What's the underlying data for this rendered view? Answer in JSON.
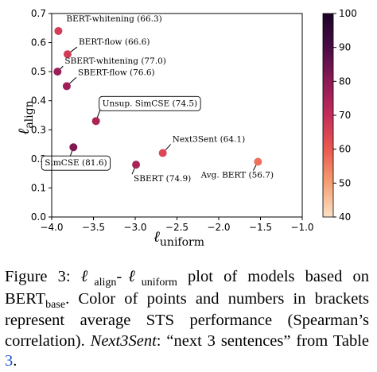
{
  "chart_data": {
    "type": "scatter",
    "title": "",
    "xlabel": {
      "main": "ℓ",
      "sub": "uniform"
    },
    "ylabel": {
      "main": "ℓ",
      "sub": "align"
    },
    "xlim": [
      -4.0,
      -1.0
    ],
    "ylim": [
      0.0,
      0.7
    ],
    "xticks": [
      -4.0,
      -3.5,
      -3.0,
      -2.5,
      -2.0,
      -1.5,
      -1.0
    ],
    "xtick_labels": [
      "−4.0",
      "−3.5",
      "−3.0",
      "−2.5",
      "−2.0",
      "−1.5",
      "−1.0"
    ],
    "yticks": [
      0.0,
      0.1,
      0.2,
      0.3,
      0.4,
      0.5,
      0.6,
      0.7
    ],
    "ytick_labels": [
      "0.0",
      "0.1",
      "0.2",
      "0.3",
      "0.4",
      "0.5",
      "0.6",
      "0.7"
    ],
    "grid": false,
    "colorbar": {
      "min": 40,
      "max": 100,
      "ticks": [
        40,
        50,
        60,
        70,
        80,
        90,
        100
      ],
      "tick_labels": [
        "40",
        "50",
        "60",
        "70",
        "80",
        "90",
        "100"
      ],
      "colormap": [
        "#fde0c5",
        "#f59e72",
        "#eb5a50",
        "#c42d5b",
        "#8b1a55",
        "#4a0c45",
        "#1b0328"
      ]
    },
    "points": [
      {
        "label": "BERT-whitening (66.3)",
        "x": -3.92,
        "y": 0.64,
        "value": 66.3,
        "boxed": false
      },
      {
        "label": "BERT-flow (66.6)",
        "x": -3.81,
        "y": 0.56,
        "value": 66.6,
        "boxed": false
      },
      {
        "label": "SBERT-whitening (77.0)",
        "x": -3.93,
        "y": 0.5,
        "value": 77.0,
        "boxed": false
      },
      {
        "label": "SBERT-flow (76.6)",
        "x": -3.82,
        "y": 0.45,
        "value": 76.6,
        "boxed": false
      },
      {
        "label": "Unsup. SimCSE (74.5)",
        "x": -3.47,
        "y": 0.33,
        "value": 74.5,
        "boxed": true
      },
      {
        "label": "SimCSE (81.6)",
        "x": -3.74,
        "y": 0.24,
        "value": 81.6,
        "boxed": true
      },
      {
        "label": "Next3Sent (64.1)",
        "x": -2.67,
        "y": 0.22,
        "value": 64.1,
        "boxed": false
      },
      {
        "label": "SBERT (74.9)",
        "x": -2.99,
        "y": 0.18,
        "value": 74.9,
        "boxed": false
      },
      {
        "label": "Avg. BERT (56.7)",
        "x": -1.53,
        "y": 0.19,
        "value": 56.7,
        "boxed": false
      }
    ]
  },
  "caption": {
    "figure_label": "Figure 3:",
    "l1": "ℓ",
    "l1_sub": "align",
    "dash": "-",
    "l2": "ℓ",
    "l2_sub": "uniform",
    "text1": " plot of models based on BERT",
    "bert_sub": "base",
    "text2": ". Color of points and numbers in brackets represent average STS performance (Spearman’s correlation). ",
    "next3sent": "Next3Sent",
    "text3": ": “next 3 sentences” from Table ",
    "table_ref": "3",
    "text4": "."
  }
}
